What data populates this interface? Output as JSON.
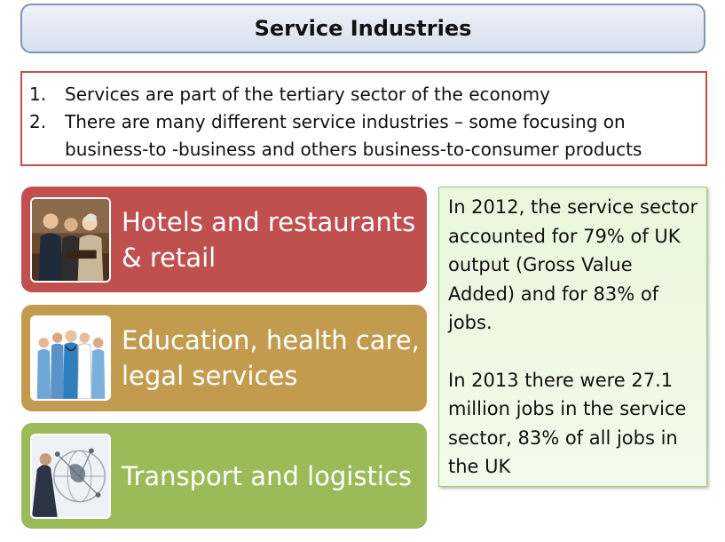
{
  "title": "Service Industries",
  "list": [
    {
      "number": "1.",
      "text": "Services are part of the tertiary sector of the economy"
    },
    {
      "number": "2.",
      "text": "There are many different service industries – some focusing on business-to -business and others business-to-consumer products"
    }
  ],
  "tiles": [
    {
      "label": "Hotels and restaurants & retail",
      "color": "#c0504d",
      "photo_icon": "hotel-reception-photo"
    },
    {
      "label": "Education, health care, legal services",
      "color": "#c29b4f",
      "photo_icon": "medical-staff-photo"
    },
    {
      "label": "Transport and logistics",
      "color": "#9bbb59",
      "photo_icon": "global-network-photo"
    }
  ],
  "info": {
    "paragraph_1": "In 2012, the service sector accounted for 79% of UK output (Gross Value Added) and for 83% of jobs.",
    "paragraph_2": "In 2013 there were 27.1 million jobs in the service sector, 83% of all jobs in the UK"
  },
  "colors": {
    "title_border": "#7f95b5",
    "list_border": "#c0504d",
    "info_border": "#9ccc7a",
    "info_bg": "#e9f7dd"
  }
}
